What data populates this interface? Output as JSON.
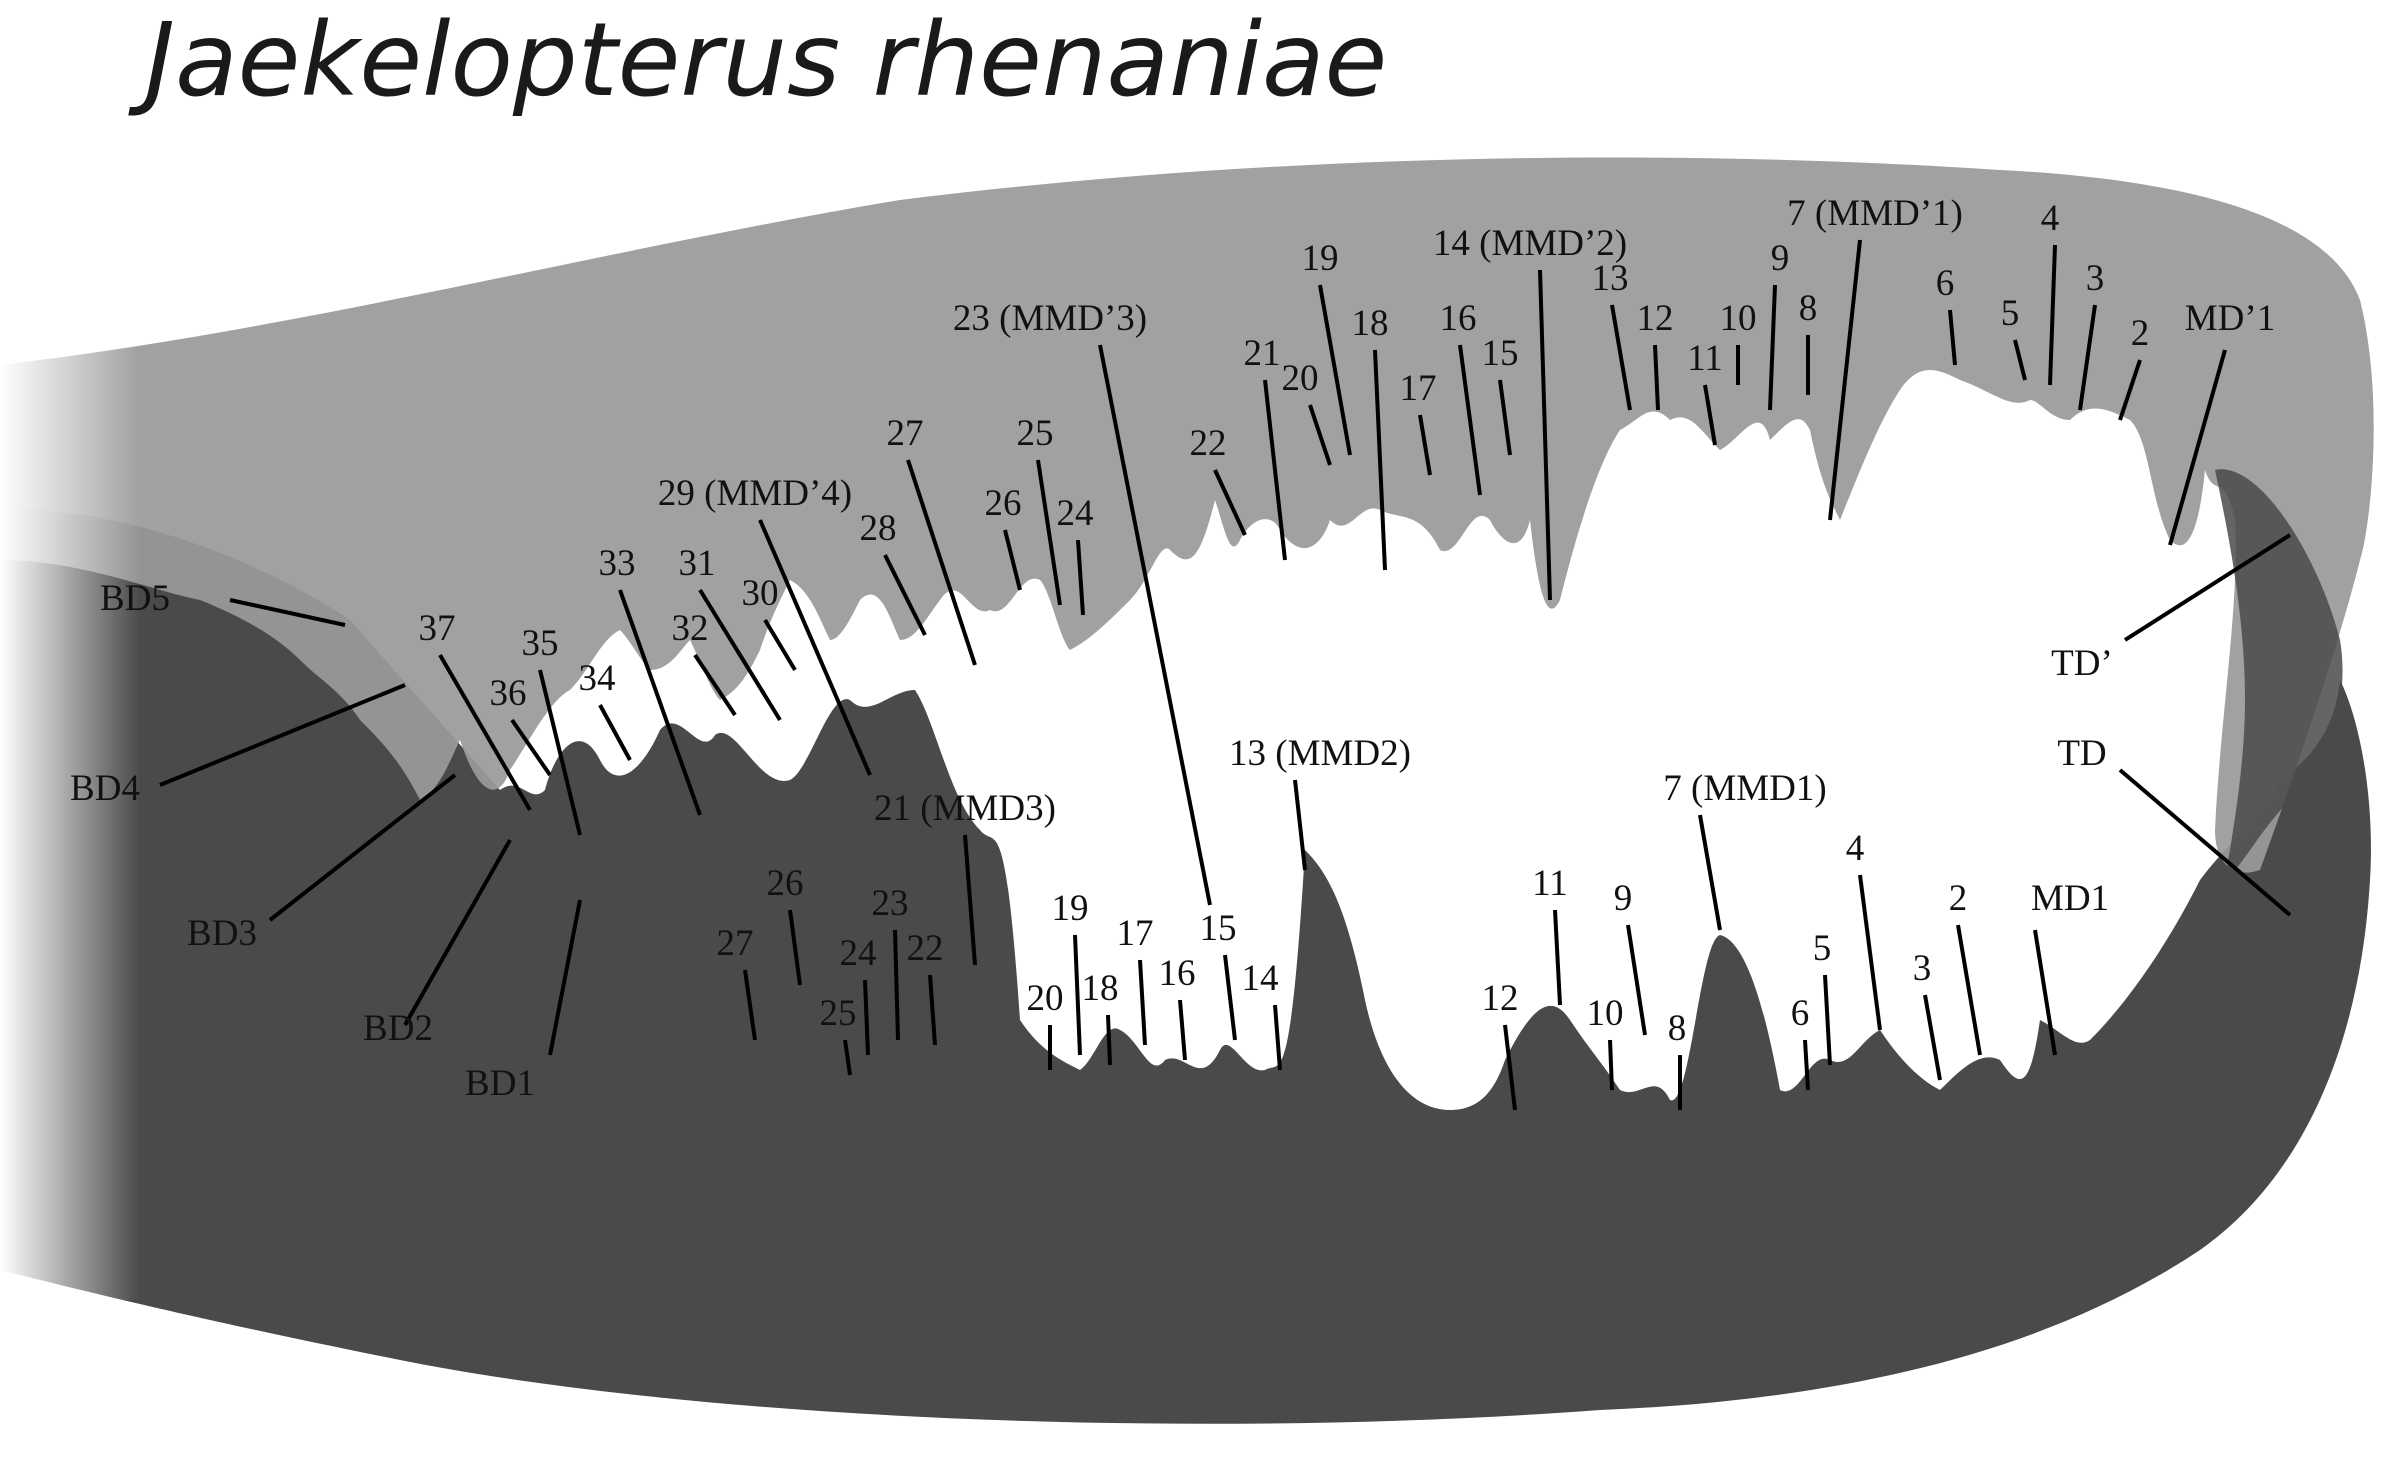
{
  "title": "Jaekelopterus rhenaniae",
  "colors": {
    "upper_jaw": "#9a9a9a",
    "lower_jaw": "#4a4a4a",
    "labels": "#111111"
  },
  "upper_labels": [
    "MD’1",
    "2",
    "3",
    "4",
    "5",
    "6",
    "7 (MMD’1)",
    "8",
    "9",
    "10",
    "11",
    "12",
    "13",
    "14 (MMD’2)",
    "15",
    "16",
    "17",
    "18",
    "19",
    "20",
    "21",
    "22",
    "23 (MMD’3)",
    "24",
    "25",
    "26",
    "27",
    "28",
    "29 (MMD’4)",
    "30",
    "31",
    "32",
    "33",
    "34",
    "35",
    "36",
    "37"
  ],
  "lower_labels": [
    "MD1",
    "2",
    "3",
    "4",
    "5",
    "6",
    "7 (MMD1)",
    "8",
    "9",
    "10",
    "11",
    "12",
    "13 (MMD2)",
    "14",
    "15",
    "16",
    "17",
    "18",
    "19",
    "20",
    "21 (MMD3)",
    "22",
    "23",
    "24",
    "25",
    "26",
    "27"
  ],
  "basal_labels": [
    "BD1",
    "BD2",
    "BD3",
    "BD4",
    "BD5"
  ],
  "tip_labels": [
    "TD’",
    "TD"
  ]
}
